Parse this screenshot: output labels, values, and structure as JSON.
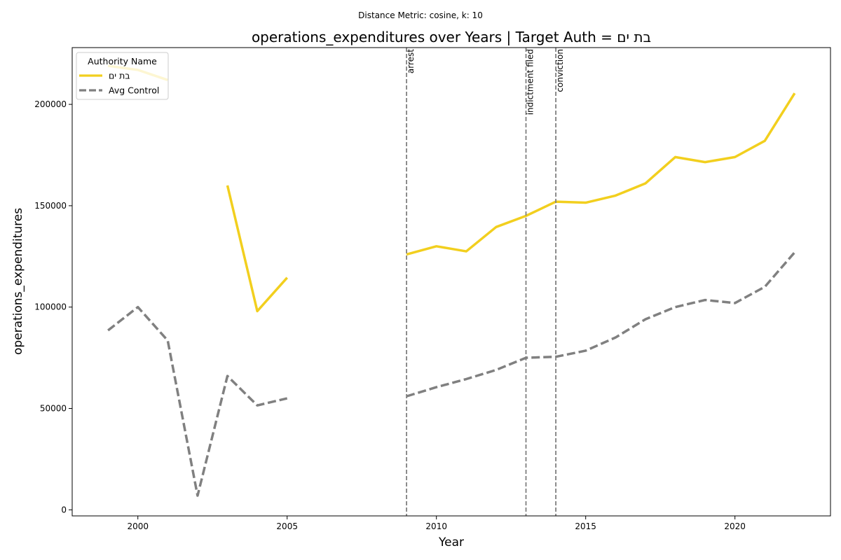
{
  "chart_data": {
    "type": "line",
    "suptitle": "Distance Metric: cosine, k: 10",
    "title": "operations_expenditures over Years | Target Auth = בת ים",
    "xlabel": "Year",
    "ylabel": "operations_expenditures",
    "xlim": [
      1997.8,
      2023.2
    ],
    "ylim": [
      -3000,
      228000
    ],
    "xticks": [
      2000,
      2005,
      2010,
      2015,
      2020
    ],
    "yticks": [
      0,
      50000,
      100000,
      150000,
      200000
    ],
    "legend": {
      "title": "Authority Name",
      "placement": "upper-left"
    },
    "series": [
      {
        "name": "בת ים",
        "color": "#f2cf1e",
        "style": "solid",
        "points": [
          [
            1999,
            219000
          ],
          [
            2000,
            217000
          ],
          [
            2001,
            212000
          ],
          [
            2002,
            null
          ],
          [
            2003,
            160000
          ],
          [
            2004,
            98000
          ],
          [
            2005,
            114500
          ],
          [
            2006,
            null
          ],
          [
            2007,
            null
          ],
          [
            2008,
            null
          ],
          [
            2009,
            126000
          ],
          [
            2010,
            130000
          ],
          [
            2011,
            127500
          ],
          [
            2012,
            139500
          ],
          [
            2013,
            145000
          ],
          [
            2014,
            152000
          ],
          [
            2015,
            151500
          ],
          [
            2016,
            155000
          ],
          [
            2017,
            161000
          ],
          [
            2018,
            174000
          ],
          [
            2019,
            171500
          ],
          [
            2020,
            174000
          ],
          [
            2021,
            182000
          ],
          [
            2022,
            205500
          ]
        ]
      },
      {
        "name": "Avg Control",
        "color": "#808080",
        "style": "dashed",
        "points": [
          [
            1999,
            88500
          ],
          [
            2000,
            100000
          ],
          [
            2001,
            83500
          ],
          [
            2002,
            7000
          ],
          [
            2003,
            66000
          ],
          [
            2004,
            51500
          ],
          [
            2005,
            55000
          ],
          [
            2006,
            null
          ],
          [
            2007,
            null
          ],
          [
            2008,
            null
          ],
          [
            2009,
            56000
          ],
          [
            2010,
            60500
          ],
          [
            2011,
            64500
          ],
          [
            2012,
            69000
          ],
          [
            2013,
            75000
          ],
          [
            2014,
            75500
          ],
          [
            2015,
            78500
          ],
          [
            2016,
            85000
          ],
          [
            2017,
            94000
          ],
          [
            2018,
            100000
          ],
          [
            2019,
            103500
          ],
          [
            2020,
            102000
          ],
          [
            2021,
            110000
          ],
          [
            2022,
            127000
          ]
        ]
      }
    ],
    "events": [
      {
        "year": 2009,
        "label": "arrest"
      },
      {
        "year": 2013,
        "label": "indictment filed"
      },
      {
        "year": 2014,
        "label": "conviction"
      }
    ]
  }
}
